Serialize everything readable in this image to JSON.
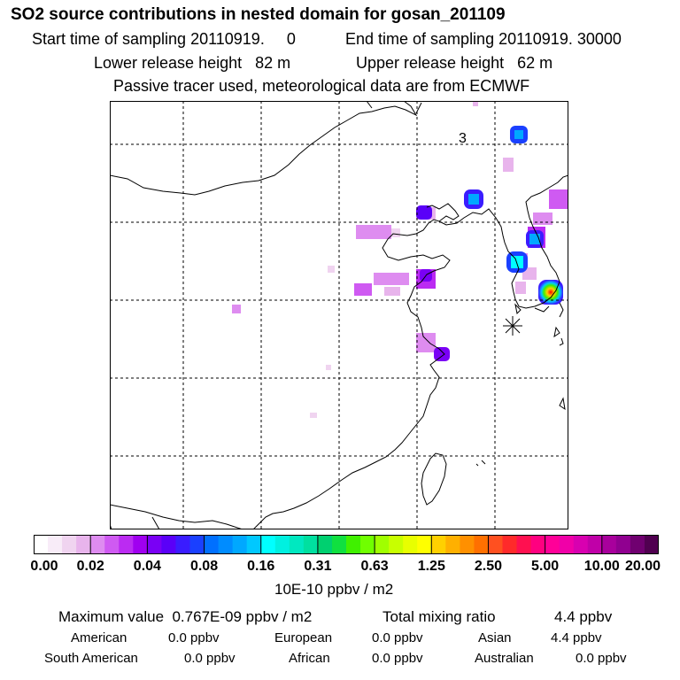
{
  "header": {
    "title": "SO2 source contributions in nested domain for gosan_201109",
    "start_time": "Start time of sampling 20110919.     0",
    "end_time": "End time of sampling 20110919. 30000",
    "lower_release": "Lower release height   82 m",
    "upper_release": "Upper release height   62 m",
    "tracer_note": "Passive tracer used, meteorological data are from ECMWF"
  },
  "map": {
    "label": "3",
    "receptor": "gosan",
    "colors": {
      "coast": "#000000",
      "grid": "#000000"
    }
  },
  "colorbar": {
    "ticks": [
      "0.00",
      "0.02",
      "0.04",
      "0.08",
      "0.16",
      "0.31",
      "0.63",
      "1.25",
      "2.50",
      "5.00",
      "10.00",
      "20.00"
    ],
    "units": "10E-10 ppbv / m2",
    "bins": [
      [
        "#ffffff",
        "#f8ecf8",
        "#f0d4f0",
        "#e8b4ec"
      ],
      [
        "#de8cf0",
        "#cf5af2",
        "#bb2bf2",
        "#a000f0"
      ],
      [
        "#7a00f5",
        "#5a00f8",
        "#3a1cff",
        "#1a40ff"
      ],
      [
        "#0070ff",
        "#008cff",
        "#00a8ff",
        "#00c8ff"
      ],
      [
        "#00ffff",
        "#00f0e0",
        "#00e8c0",
        "#00e0a0"
      ],
      [
        "#00d070",
        "#10e040",
        "#40f000",
        "#70ff00"
      ],
      [
        "#a0ff00",
        "#c8ff00",
        "#e8ff00",
        "#ffff00"
      ],
      [
        "#ffd000",
        "#ffb000",
        "#ff9000",
        "#ff7000"
      ],
      [
        "#ff5020",
        "#ff2a2a",
        "#ff1050",
        "#ff0080"
      ],
      [
        "#ff0098",
        "#f000a8",
        "#d800b0",
        "#c000a8"
      ],
      [
        "#a8009c",
        "#900090",
        "#700070",
        "#500050"
      ]
    ]
  },
  "stats": {
    "max_value": "Maximum value  0.767E-09 ppbv / m2",
    "total_label": "Total mixing ratio",
    "total_value": "4.4 ppbv",
    "american": {
      "label": "American",
      "value": "0.0 ppbv"
    },
    "european": {
      "label": "European",
      "value": "0.0 ppbv"
    },
    "asian": {
      "label": "Asian",
      "value": "4.4 ppbv"
    },
    "south_american": {
      "label": "South American",
      "value": "0.0 ppbv"
    },
    "african": {
      "label": "African",
      "value": "0.0 ppbv"
    },
    "australian": {
      "label": "Australian",
      "value": "0.0 ppbv"
    }
  }
}
